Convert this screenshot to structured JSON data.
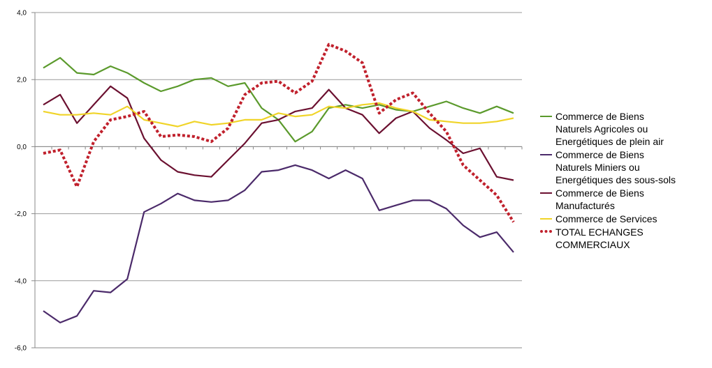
{
  "chart_data": {
    "type": "line",
    "title": "",
    "xlabel": "",
    "ylabel": "",
    "ylim": [
      -6,
      4
    ],
    "yticks": [
      "-6,0",
      "-4,0",
      "-2,0",
      "0,0",
      "2,0",
      "4,0"
    ],
    "grid": true,
    "legend_position": "right",
    "series": [
      {
        "name": "Commerce de Biens Naturels Agricoles ou Energétiques de plein air",
        "color": "#5b9a2c",
        "style": "solid",
        "values": [
          2.35,
          2.65,
          2.2,
          2.15,
          2.4,
          2.2,
          1.9,
          1.65,
          1.8,
          2.0,
          2.05,
          1.8,
          1.9,
          1.15,
          0.8,
          0.15,
          0.45,
          1.15,
          1.25,
          1.15,
          1.25,
          1.1,
          1.05,
          1.2,
          1.35,
          1.15,
          1.0,
          1.2,
          1.0
        ]
      },
      {
        "name": "Commerce de Biens Naturels Miniers ou Energétiques des sous-sols",
        "color": "#4b2a6a",
        "style": "solid",
        "values": [
          -4.9,
          -5.25,
          -5.05,
          -4.3,
          -4.35,
          -3.95,
          -1.95,
          -1.7,
          -1.4,
          -1.6,
          -1.65,
          -1.6,
          -1.3,
          -0.75,
          -0.7,
          -0.55,
          -0.7,
          -0.95,
          -0.7,
          -0.95,
          -1.9,
          -1.75,
          -1.6,
          -1.6,
          -1.85,
          -2.35,
          -2.7,
          -2.55,
          -3.15
        ]
      },
      {
        "name": "Commerce de Biens Manufacturés",
        "color": "#6b1030",
        "style": "solid",
        "values": [
          1.25,
          1.55,
          0.7,
          1.25,
          1.8,
          1.45,
          0.25,
          -0.4,
          -0.75,
          -0.85,
          -0.9,
          -0.4,
          0.1,
          0.7,
          0.8,
          1.05,
          1.15,
          1.7,
          1.15,
          0.95,
          0.4,
          0.85,
          1.05,
          0.55,
          0.2,
          -0.2,
          -0.05,
          -0.9,
          -1.0
        ]
      },
      {
        "name": "Commerce de Services",
        "color": "#f0d428",
        "style": "solid",
        "values": [
          1.05,
          0.95,
          0.95,
          1.0,
          0.95,
          1.2,
          0.8,
          0.7,
          0.6,
          0.75,
          0.65,
          0.7,
          0.8,
          0.8,
          1.0,
          0.9,
          0.95,
          1.2,
          1.15,
          1.25,
          1.3,
          1.15,
          1.05,
          0.8,
          0.75,
          0.7,
          0.7,
          0.75,
          0.85
        ]
      },
      {
        "name": "TOTAL ECHANGES COMMERCIAUX",
        "color": "#c0202c",
        "style": "dotted",
        "values": [
          -0.2,
          -0.1,
          -1.2,
          0.15,
          0.8,
          0.9,
          1.05,
          0.3,
          0.35,
          0.3,
          0.15,
          0.55,
          1.55,
          1.9,
          1.95,
          1.6,
          1.95,
          3.05,
          2.85,
          2.5,
          1.0,
          1.4,
          1.6,
          1.0,
          0.45,
          -0.55,
          -1.0,
          -1.45,
          -2.25
        ]
      }
    ]
  },
  "legend": [
    {
      "label": "Commerce de Biens\nNaturels Agricoles ou\nEnergétiques de plein air"
    },
    {
      "label": "Commerce de Biens\nNaturels Miniers ou\nEnergétiques des sous-sols"
    },
    {
      "label": "Commerce de Biens\nManufacturés"
    },
    {
      "label": "Commerce de Services"
    },
    {
      "label": "TOTAL ECHANGES\nCOMMERCIAUX"
    }
  ]
}
